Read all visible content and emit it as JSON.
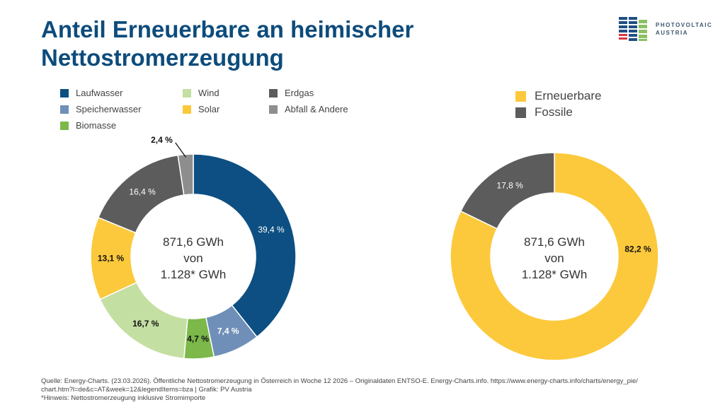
{
  "title": [
    "Anteil Erneuerbare an heimischer",
    "Nettostromerzeugung"
  ],
  "logo": {
    "line1": "PHOTOVOLTAIC",
    "line2": "AUSTRIA"
  },
  "chart_data": [
    {
      "type": "donut",
      "center_text": [
        "871,6 GWh",
        "von",
        "1.128* GWh"
      ],
      "legend_placement": "top",
      "slices": [
        {
          "name": "Laufwasser",
          "value": 39.4,
          "label": "39,4 %",
          "color": "#0d4f82"
        },
        {
          "name": "Speicherwasser",
          "value": 7.4,
          "label": "7,4 %",
          "color": "#6f8fb8"
        },
        {
          "name": "Biomasse",
          "value": 4.7,
          "label": "4,7 %",
          "color": "#7cb84a"
        },
        {
          "name": "Wind",
          "value": 16.7,
          "label": "16,7 %",
          "color": "#c4dfa2"
        },
        {
          "name": "Solar",
          "value": 13.1,
          "label": "13,1 %",
          "color": "#fcc93c"
        },
        {
          "name": "Erdgas",
          "value": 16.4,
          "label": "16,4 %",
          "color": "#5c5c5c"
        },
        {
          "name": "Abfall & Andere",
          "value": 2.4,
          "label": "2,4 %",
          "color": "#8e8e8e"
        }
      ]
    },
    {
      "type": "donut",
      "center_text": [
        "871,6 GWh",
        "von",
        "1.128* GWh"
      ],
      "legend_placement": "top",
      "slices": [
        {
          "name": "Erneuerbare",
          "value": 82.2,
          "label": "82,2 %",
          "color": "#fcc93c"
        },
        {
          "name": "Fossile",
          "value": 17.8,
          "label": "17,8 %",
          "color": "#5c5c5c"
        }
      ]
    }
  ],
  "footer": {
    "line1": "Quelle: Energy-Charts. (23.03.2026). Öffentliche Nettostromerzeugung in Österreich in Woche 12 2026 – Originaldaten ENTSO-E. Energy-Charts.info. https://www.energy-charts.info/charts/energy_pie/",
    "line2": "chart.htm?l=de&c=AT&week=12&legendItems=bza | Grafik: PV Austria",
    "line3": "*Hinweis: Nettostromerzeugung inklusive Stromimporte"
  }
}
